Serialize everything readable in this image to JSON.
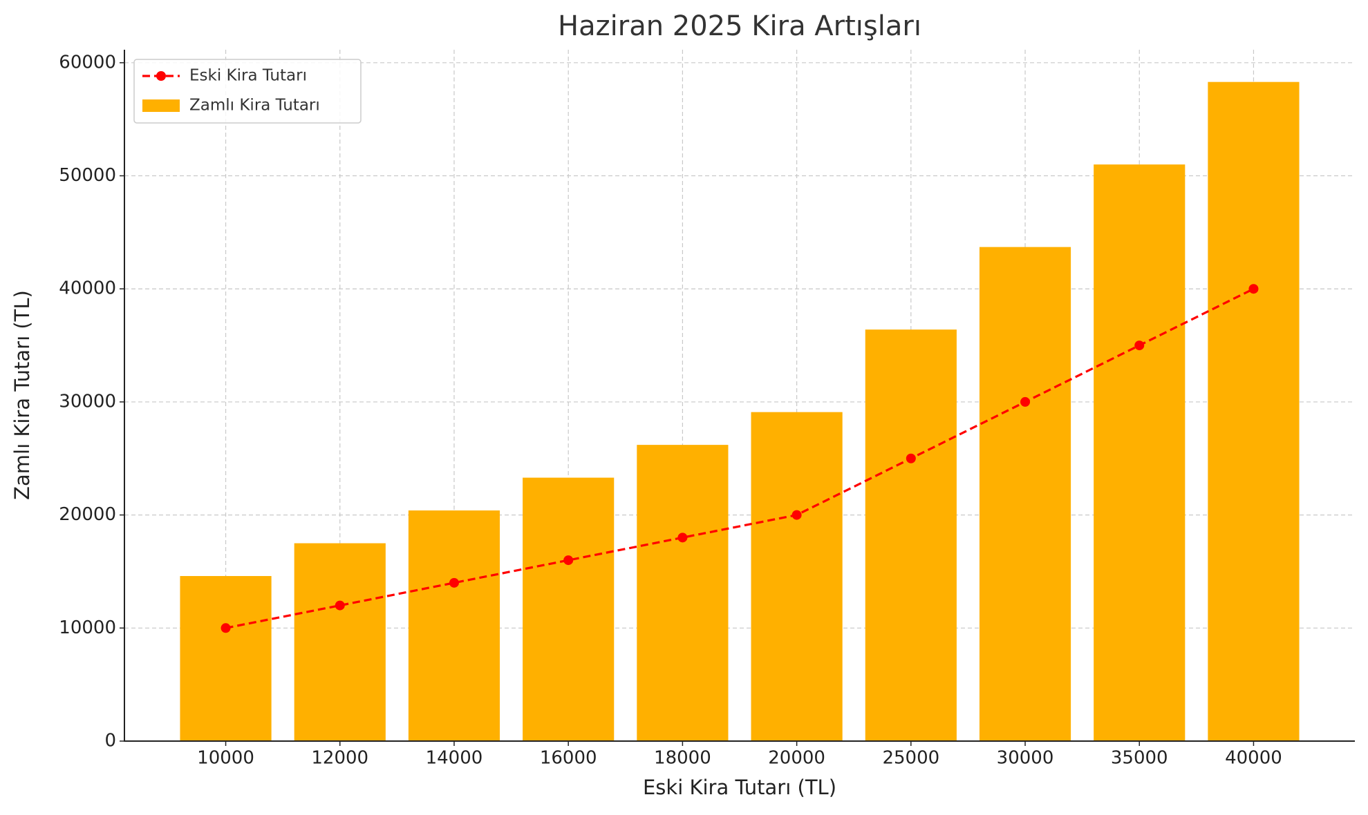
{
  "chart_data": {
    "type": "bar",
    "title": "Haziran 2025 Kira Artışları",
    "x_label": "Eski Kira Tutarı (TL)",
    "y_label": "Zamlı Kira Tutarı (TL)",
    "categories": [
      "10000",
      "12000",
      "14000",
      "16000",
      "18000",
      "20000",
      "25000",
      "30000",
      "35000",
      "40000"
    ],
    "series": [
      {
        "name": "Zamlı Kira Tutarı",
        "type": "bar",
        "color": "#ffb000",
        "values": [
          14600,
          17500,
          20400,
          23300,
          26200,
          29100,
          36400,
          43700,
          51000,
          58300
        ]
      },
      {
        "name": "Eski Kira Tutarı",
        "type": "line",
        "color": "#ff0000",
        "values": [
          10000,
          12000,
          14000,
          16000,
          18000,
          20000,
          25000,
          30000,
          35000,
          40000
        ]
      }
    ],
    "ylim": [
      0,
      61150
    ],
    "yticks": [
      0,
      10000,
      20000,
      30000,
      40000,
      50000,
      60000
    ],
    "grid": true,
    "legend": "upper left"
  }
}
